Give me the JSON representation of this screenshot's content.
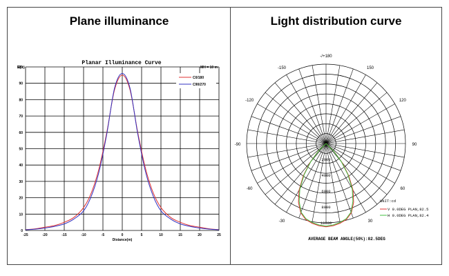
{
  "panels": {
    "left_title": "Plane illuminance",
    "right_title": "Light distribution curve"
  },
  "chart_data": [
    {
      "type": "line",
      "title": "Planar Illuminance Curve",
      "mh_label": "MH = 10 m",
      "ylabel": "E(lx)",
      "xlabel": "Distance(m)",
      "xlim": [
        -25,
        25
      ],
      "ylim": [
        0,
        100
      ],
      "xticks": [
        "-25",
        "-20",
        "-15",
        "-10",
        "-5",
        "0",
        "5",
        "10",
        "15",
        "20",
        "25"
      ],
      "yticks": [
        "0",
        "10",
        "20",
        "30",
        "40",
        "50",
        "60",
        "70",
        "80",
        "90",
        "100"
      ],
      "grid": true,
      "legend_position": "top-right",
      "x": [
        -25,
        -22.5,
        -20,
        -17.5,
        -15,
        -12.5,
        -10,
        -8,
        -6,
        -4,
        -2,
        0,
        2,
        4,
        6,
        8,
        10,
        12.5,
        15,
        17.5,
        20,
        22.5,
        25
      ],
      "series": [
        {
          "name": "C0/180",
          "color": "#e03030",
          "values": [
            0.5,
            1,
            2,
            3,
            5,
            8,
            14,
            23,
            38,
            60,
            86,
            95,
            86,
            60,
            38,
            23,
            14,
            8,
            5,
            3,
            2,
            1,
            0.5
          ]
        },
        {
          "name": "C90/270",
          "color": "#3030c0",
          "values": [
            0.4,
            0.8,
            1.5,
            2.5,
            4,
            7,
            12,
            21,
            36,
            59,
            87,
            96,
            87,
            59,
            36,
            21,
            12,
            7,
            4,
            2.5,
            1.5,
            0.8,
            0.4
          ]
        }
      ]
    },
    {
      "type": "polar",
      "angle_labels": [
        {
          "angle": 180,
          "text": "-/+180"
        },
        {
          "angle": -150,
          "text": "-150"
        },
        {
          "angle": 150,
          "text": "150"
        },
        {
          "angle": -120,
          "text": "-120"
        },
        {
          "angle": 120,
          "text": "120"
        },
        {
          "angle": -90,
          "text": "-90"
        },
        {
          "angle": 90,
          "text": "90"
        },
        {
          "angle": -60,
          "text": "-60"
        },
        {
          "angle": 60,
          "text": "60"
        },
        {
          "angle": -30,
          "text": "-30"
        },
        {
          "angle": 30,
          "text": "30"
        },
        {
          "angle": 0,
          "text": "0"
        }
      ],
      "radial_labels": [
        "2000",
        "4000",
        "6000",
        "8000",
        "10000"
      ],
      "rmax": 10000,
      "unit": "UNIT:cd",
      "legend_position": "bottom-right",
      "series": [
        {
          "name": "V 0.0DEG PLAN,82.5",
          "color": "#e03030",
          "angles": [
            -50,
            -45,
            -40,
            -35,
            -30,
            -25,
            -20,
            -15,
            -10,
            -5,
            0,
            5,
            10,
            15,
            20,
            25,
            30,
            35,
            40,
            45,
            50
          ],
          "values": [
            0,
            1500,
            3200,
            5000,
            6800,
            8200,
            9300,
            9900,
            10200,
            10400,
            10500,
            10400,
            10200,
            9900,
            9300,
            8200,
            6800,
            5000,
            3200,
            1500,
            0
          ]
        },
        {
          "name": "H 0.0DEG PLAN,82.4",
          "color": "#40c040",
          "angles": [
            -50,
            -45,
            -40,
            -35,
            -30,
            -25,
            -20,
            -15,
            -10,
            -5,
            0,
            5,
            10,
            15,
            20,
            25,
            30,
            35,
            40,
            45,
            50
          ],
          "values": [
            0,
            1400,
            3000,
            4800,
            6600,
            8000,
            9200,
            9800,
            10100,
            10300,
            10400,
            10300,
            10100,
            9800,
            9200,
            8000,
            6600,
            4800,
            3000,
            1400,
            0
          ]
        }
      ],
      "footer": "AVERAGE BEAM ANGLE(50%):82.5DEG"
    }
  ]
}
